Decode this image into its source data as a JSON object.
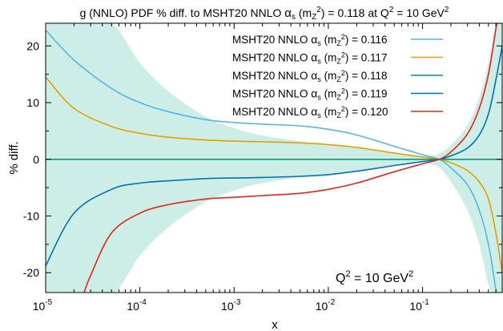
{
  "chart_data": {
    "type": "line",
    "title": {
      "pre": "g (NNLO) PDF % diff. to MSHT20 NNLO ",
      "alpha": "α",
      "alpha_sub": "s",
      "paren_open": " (m",
      "mz_sub": "Z",
      "mz_sup": "2",
      "mid": ") = 0.118 at Q",
      "q_sup": "2",
      "post": " = 10 GeV",
      "gev_sup": "2"
    },
    "xlabel": "x",
    "ylabel": "% diff.",
    "x_scale": "log",
    "xlim": [
      1e-05,
      0.7
    ],
    "ylim": [
      -23.5,
      24
    ],
    "x_ticks": [
      {
        "value": 1e-05,
        "base": "10",
        "exp": "-5"
      },
      {
        "value": 0.0001,
        "base": "10",
        "exp": "-4"
      },
      {
        "value": 0.001,
        "base": "10",
        "exp": "-3"
      },
      {
        "value": 0.01,
        "base": "10",
        "exp": "-2"
      },
      {
        "value": 0.1,
        "base": "10",
        "exp": "-1"
      }
    ],
    "y_ticks": [
      {
        "value": 20,
        "label": "20"
      },
      {
        "value": 10,
        "label": "10"
      },
      {
        "value": 0,
        "label": "0"
      },
      {
        "value": -10,
        "label": "-10"
      },
      {
        "value": -20,
        "label": "-20"
      }
    ],
    "annotation": {
      "text": "Q",
      "sup": "2",
      "post": " = 10 GeV",
      "sup2": "2"
    },
    "band": {
      "color": "#cdeee6",
      "x": [
        1e-05,
        2e-05,
        5e-05,
        0.0001,
        0.0002,
        0.0005,
        0.001,
        0.002,
        0.005,
        0.01,
        0.02,
        0.05,
        0.1,
        0.15,
        0.2,
        0.3,
        0.4,
        0.5,
        0.6,
        0.7
      ],
      "upper": [
        24,
        24,
        24,
        17,
        12,
        7.5,
        5.5,
        4.2,
        3.2,
        2.6,
        2.0,
        1.0,
        0.5,
        1.0,
        2.5,
        6,
        11,
        17,
        24,
        24
      ],
      "lower": [
        -24,
        -24,
        -24,
        -17,
        -12,
        -7.5,
        -5.5,
        -4.2,
        -3.2,
        -2.6,
        -2.0,
        -1.0,
        -0.5,
        -1.5,
        -4,
        -9,
        -15,
        -22,
        -24,
        -24
      ]
    },
    "series": [
      {
        "prefix": "MSHT20 NNLO ",
        "alpha": "α",
        "alpha_sub": "s",
        "paren": " (m",
        "mz_sub": "Z",
        "mz_sup": "2",
        "value_text": ") = 0.116",
        "color": "#56b4e9",
        "x": [
          1e-05,
          2e-05,
          5e-05,
          0.0001,
          0.0002,
          0.0005,
          0.001,
          0.002,
          0.005,
          0.01,
          0.02,
          0.05,
          0.1,
          0.15,
          0.2,
          0.3,
          0.4,
          0.5,
          0.6,
          0.7
        ],
        "y": [
          22.8,
          17.5,
          12.5,
          10.0,
          8.4,
          7.0,
          6.5,
          6.2,
          5.9,
          5.3,
          4.3,
          2.3,
          0.8,
          0.0,
          -1.5,
          -4.5,
          -9,
          -15,
          -23,
          -30
        ]
      },
      {
        "prefix": "MSHT20 NNLO ",
        "alpha": "α",
        "alpha_sub": "s",
        "paren": " (m",
        "mz_sub": "Z",
        "mz_sup": "2",
        "value_text": ") = 0.117",
        "color": "#e69f00",
        "x": [
          1e-05,
          2e-05,
          5e-05,
          0.0001,
          0.0002,
          0.0005,
          0.001,
          0.002,
          0.005,
          0.01,
          0.02,
          0.05,
          0.1,
          0.15,
          0.2,
          0.3,
          0.4,
          0.5,
          0.6,
          0.7
        ],
        "y": [
          14.5,
          9.0,
          5.8,
          4.6,
          3.9,
          3.4,
          3.2,
          3.1,
          2.9,
          2.6,
          2.1,
          1.1,
          0.4,
          0.0,
          -0.6,
          -2.0,
          -4.0,
          -7.0,
          -13,
          -20
        ]
      },
      {
        "prefix": "MSHT20 NNLO ",
        "alpha": "α",
        "alpha_sub": "s",
        "paren": " (m",
        "mz_sub": "Z",
        "mz_sup": "2",
        "value_text": ") = 0.118",
        "color": "#009e73",
        "x": [
          1e-05,
          0.7
        ],
        "y": [
          0,
          0
        ]
      },
      {
        "prefix": "MSHT20 NNLO ",
        "alpha": "α",
        "alpha_sub": "s",
        "paren": " (m",
        "mz_sub": "Z",
        "mz_sup": "2",
        "value_text": ") = 0.119",
        "color": "#0072b2",
        "x": [
          1e-05,
          2e-05,
          5e-05,
          0.0001,
          0.0002,
          0.0005,
          0.001,
          0.002,
          0.005,
          0.01,
          0.02,
          0.05,
          0.1,
          0.15,
          0.2,
          0.3,
          0.4,
          0.5,
          0.6,
          0.7
        ],
        "y": [
          -18.8,
          -9.5,
          -5.3,
          -4.2,
          -3.8,
          -3.4,
          -3.3,
          -3.2,
          -3.0,
          -2.7,
          -2.1,
          -1.1,
          -0.4,
          0.0,
          0.6,
          2.0,
          4.3,
          8.0,
          14,
          20
        ]
      },
      {
        "prefix": "MSHT20 NNLO ",
        "alpha": "α",
        "alpha_sub": "s",
        "paren": " (m",
        "mz_sub": "Z",
        "mz_sup": "2",
        "value_text": ") = 0.120",
        "color": "#e2261c",
        "x": [
          2.5e-05,
          3e-05,
          5e-05,
          0.0001,
          0.0002,
          0.0005,
          0.001,
          0.002,
          0.005,
          0.01,
          0.02,
          0.05,
          0.1,
          0.15,
          0.2,
          0.3,
          0.4,
          0.5,
          0.6,
          0.7
        ],
        "y": [
          -24,
          -20.5,
          -13,
          -9.5,
          -8.0,
          -7.0,
          -6.7,
          -6.4,
          -6.0,
          -5.3,
          -4.2,
          -2.2,
          -0.8,
          0.0,
          1.3,
          4.5,
          9.0,
          15.0,
          23,
          30
        ]
      }
    ]
  }
}
